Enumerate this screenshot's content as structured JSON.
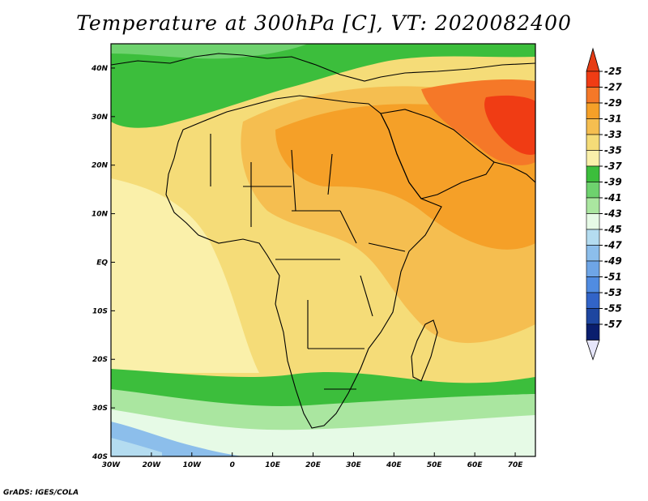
{
  "title": "Temperature at 300hPa [C], VT: 2020082400",
  "credit": "GrADS: IGES/COLA",
  "map": {
    "region": "Africa",
    "lon_range": [
      -30,
      75
    ],
    "lat_range": [
      -40,
      45
    ],
    "lon_ticks": [
      "30W",
      "20W",
      "10W",
      "0",
      "10E",
      "20E",
      "30E",
      "40E",
      "50E",
      "60E",
      "70E"
    ],
    "lat_ticks": [
      "40N",
      "30N",
      "20N",
      "10N",
      "EQ",
      "10S",
      "20S",
      "30S",
      "40S"
    ]
  },
  "colorbar": {
    "labels": [
      "-25",
      "-27",
      "-29",
      "-31",
      "-33",
      "-35",
      "-37",
      "-39",
      "-41",
      "-43",
      "-45",
      "-47",
      "-49",
      "-51",
      "-53",
      "-55",
      "-57"
    ],
    "colors": [
      "#f03c14",
      "#f57828",
      "#f5a028",
      "#f5be50",
      "#f5dc78",
      "#faf0aa",
      "#3cbe3c",
      "#6ed26e",
      "#aae6a0",
      "#e6fae6",
      "#b4dcf0",
      "#8cbeeb",
      "#6ea5e6",
      "#508ce1",
      "#3264c8",
      "#1e46a0",
      "#0a1e6e"
    ],
    "top_arrow_color": "#e63c14",
    "bottom_arrow_color": "#e6e6fa"
  }
}
